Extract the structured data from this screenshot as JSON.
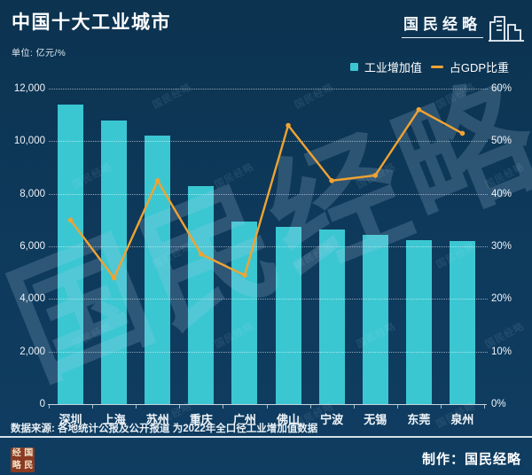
{
  "header": {
    "title": "中国十大工业城市",
    "unit_label": "单位: 亿元/%"
  },
  "logo": {
    "text": "国民经略"
  },
  "watermark": {
    "text": "国民经略"
  },
  "chart_data": {
    "type": "combo",
    "title": "中国十大工业城市",
    "unit": "亿元/%",
    "categories": [
      "深圳",
      "上海",
      "苏州",
      "重庆",
      "广州",
      "佛山",
      "宁波",
      "无锡",
      "东莞",
      "泉州"
    ],
    "series": [
      {
        "name": "工业增加值",
        "type": "bar",
        "axis": "left",
        "color": "#3BC7D2",
        "values": [
          11400,
          10800,
          10200,
          8300,
          6950,
          6750,
          6650,
          6450,
          6250,
          6200
        ]
      },
      {
        "name": "占GDP比重",
        "type": "line",
        "axis": "right",
        "color": "#F0A332",
        "values": [
          35,
          24,
          42.5,
          28.5,
          24.5,
          53,
          42.5,
          43.5,
          56,
          51.5
        ]
      }
    ],
    "left_axis": {
      "min": 0,
      "max": 12000,
      "step": 2000,
      "tick_labels": [
        "0",
        "2,000",
        "4,000",
        "6,000",
        "8,000",
        "10,000",
        "12,000"
      ]
    },
    "right_axis": {
      "min": 0,
      "max": 60,
      "step": 10,
      "tick_labels": [
        "0%",
        "10%",
        "20%",
        "30%",
        "40%",
        "50%",
        "60%"
      ]
    },
    "grid": "horizontal-dotted",
    "legend_position": "top-right"
  },
  "colors": {
    "background": "#0D3553",
    "bar": "#3BC7D2",
    "line": "#F0A332",
    "gridline": "rgba(255,255,255,0.55)",
    "seal_background": "#8A3A22",
    "seal_text": "#F2E3C8"
  },
  "footer": {
    "source": "数据来源: 各地统计公报及公开报道 为2022年全口径工业增加值数据",
    "credit": "制作：国民经略",
    "seal_chars": [
      "经",
      "国",
      "略",
      "民"
    ]
  }
}
